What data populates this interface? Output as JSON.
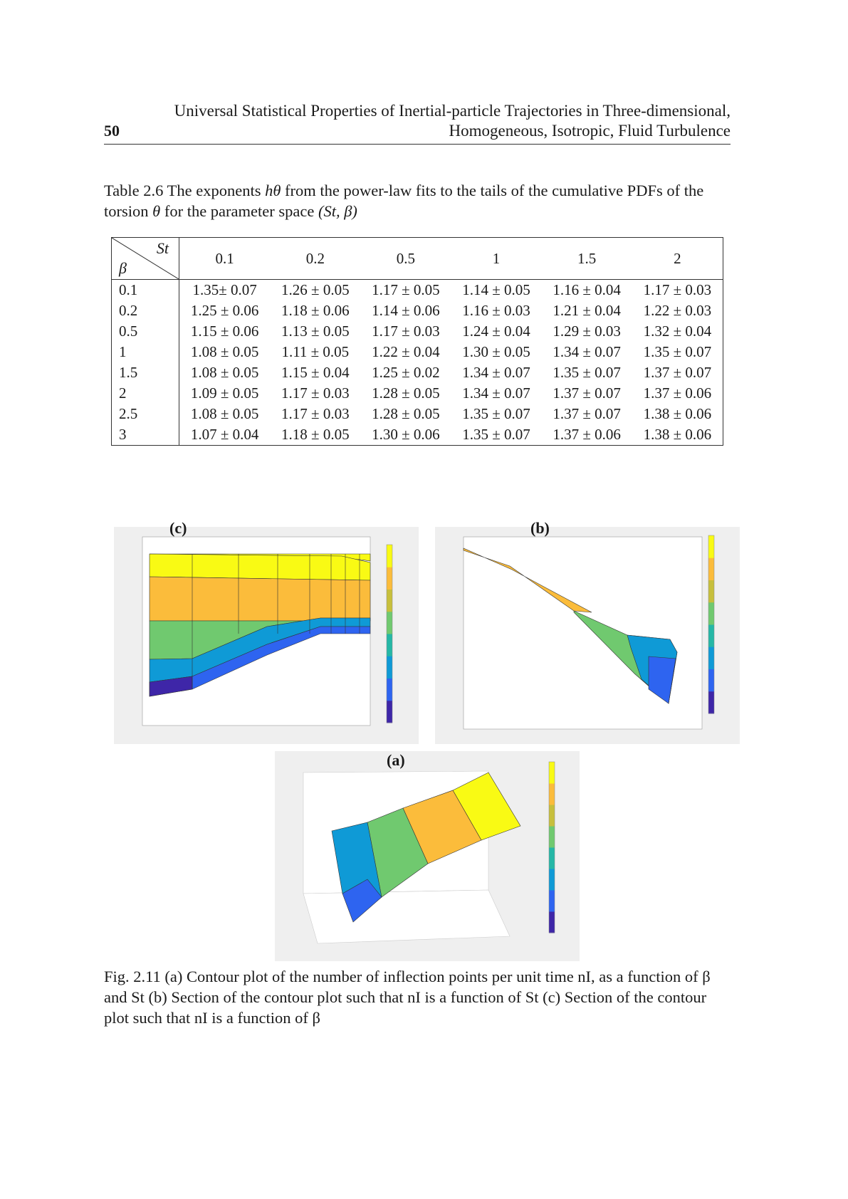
{
  "header": {
    "title_line1": "Universal Statistical Properties of Inertial-particle Trajectories in Three-dimensional,",
    "title_line2": "Homogeneous, Isotropic, Fluid Turbulence",
    "page_number": "50"
  },
  "table_caption": {
    "prefix": "Table 2.6 The exponents ",
    "symbol": "hθ",
    "text": " from the power-law fits to the tails of the cumulative PDFs of the torsion ",
    "theta": "θ",
    "text2": " for the parameter space ",
    "space": "(St, β)"
  },
  "table": {
    "corner_top": "St",
    "corner_bottom": "β",
    "columns": [
      "0.1",
      "0.2",
      "0.5",
      "1",
      "1.5",
      "2"
    ],
    "rows": [
      {
        "beta": "0.1",
        "values": [
          "1.35± 0.07",
          "1.26 ± 0.05",
          "1.17 ± 0.05",
          "1.14 ± 0.05",
          "1.16 ± 0.04",
          "1.17 ± 0.03"
        ]
      },
      {
        "beta": "0.2",
        "values": [
          "1.25 ± 0.06",
          "1.18 ± 0.06",
          "1.14 ± 0.06",
          "1.16 ± 0.03",
          "1.21 ± 0.04",
          "1.22 ± 0.03"
        ]
      },
      {
        "beta": "0.5",
        "values": [
          "1.15 ± 0.06",
          "1.13 ± 0.05",
          "1.17 ± 0.03",
          "1.24 ± 0.04",
          "1.29 ± 0.03",
          "1.32 ± 0.04"
        ]
      },
      {
        "beta": "1",
        "values": [
          "1.08 ± 0.05",
          "1.11 ± 0.05",
          "1.22 ± 0.04",
          "1.30 ± 0.05",
          "1.34 ± 0.07",
          "1.35 ± 0.07"
        ]
      },
      {
        "beta": "1.5",
        "values": [
          "1.08 ± 0.05",
          "1.15 ± 0.04",
          "1.25 ± 0.02",
          "1.34 ± 0.07",
          "1.35 ± 0.07",
          "1.37 ± 0.07"
        ]
      },
      {
        "beta": "2",
        "values": [
          "1.09 ± 0.05",
          "1.17 ± 0.03",
          "1.28 ± 0.05",
          "1.34 ± 0.07",
          "1.37 ± 0.07",
          "1.37 ± 0.06"
        ]
      },
      {
        "beta": "2.5",
        "values": [
          "1.08 ± 0.05",
          "1.17 ± 0.03",
          "1.28 ± 0.05",
          "1.35 ± 0.07",
          "1.37 ± 0.07",
          "1.38 ± 0.06"
        ]
      },
      {
        "beta": "3",
        "values": [
          "1.07 ± 0.04",
          "1.18 ± 0.05",
          "1.30 ± 0.06",
          "1.35 ± 0.07",
          "1.37 ± 0.06",
          "1.38 ± 0.06"
        ]
      }
    ]
  },
  "figure": {
    "panel_c_label": "(c)",
    "panel_b_label": "(b)",
    "panel_a_label": "(a)",
    "colormap": [
      "#3e26a8",
      "#2e64f0",
      "#0f9ad6",
      "#25b7a6",
      "#70c96f",
      "#c7bf3c",
      "#fbbc3b",
      "#f9fa14"
    ]
  },
  "fig_caption": {
    "text": "Fig. 2.11 (a) Contour plot of the number of inflection points per unit time nI, as a function of β and St (b) Section of the contour plot such that nI is a function of St (c) Section of the contour plot such that nI is a function of β"
  }
}
